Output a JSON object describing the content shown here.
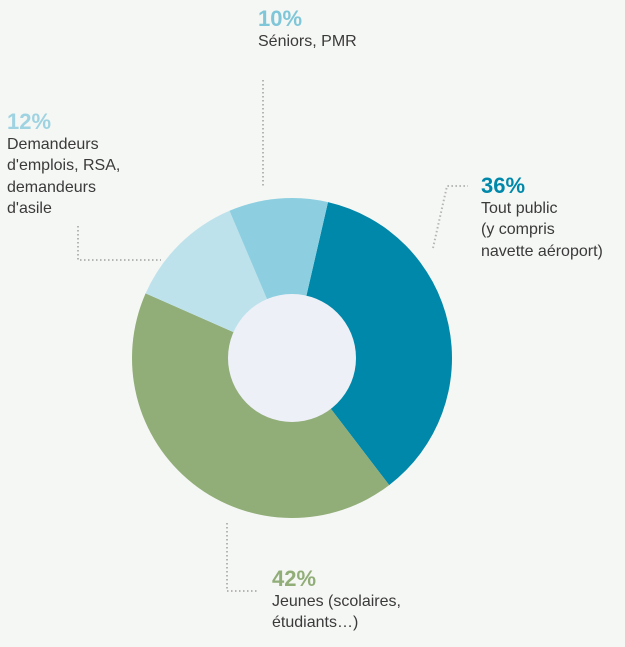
{
  "background": "#f5f7f4",
  "hole_color": "#eef0f7",
  "leader_color": "#b5b5b5",
  "chart_data": {
    "type": "pie",
    "donut": true,
    "slices": [
      {
        "percent_label": "36%",
        "value": 36,
        "description": "Tout public\n(y compris\nnavette aéroport)",
        "color": "#0088aa"
      },
      {
        "percent_label": "42%",
        "value": 42,
        "description": "Jeunes (scolaires,\nétudiants…)",
        "color": "#91ad78"
      },
      {
        "percent_label": "12%",
        "value": 12,
        "description": "Demandeurs\nd'emplois, RSA,\ndemandeurs\nd'asile",
        "color": "#bee2ec"
      },
      {
        "percent_label": "10%",
        "value": 10,
        "description": "Séniors, PMR",
        "color": "#8dcfe0"
      }
    ]
  }
}
